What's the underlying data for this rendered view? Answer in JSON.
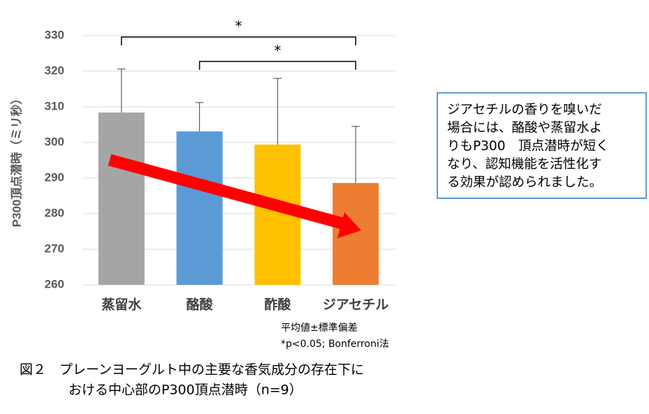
{
  "chart_data": {
    "type": "bar",
    "y_label": "P300頂点潜時（ミリ秒）",
    "categories": [
      "蒸留水",
      "酪酸",
      "酢酸",
      "ジアセチル"
    ],
    "values": [
      308.4,
      303.1,
      299.4,
      288.6
    ],
    "errors": [
      12.2,
      8.1,
      18.6,
      15.9
    ],
    "colors": [
      "#a5a5a5",
      "#5b9bd5",
      "#ffc000",
      "#ed7d31"
    ],
    "ylim": [
      260,
      330
    ],
    "yticks": [
      260,
      270,
      280,
      290,
      300,
      310,
      320,
      330
    ],
    "grid": true,
    "significance": [
      {
        "from": 0,
        "to": 3,
        "label": "*"
      },
      {
        "from": 1,
        "to": 3,
        "label": "*"
      }
    ],
    "notes": [
      "平均値±標準偏差",
      "*p<0.05; Bonferroni法"
    ]
  },
  "textbox": [
    "ジアセチルの香りを嗅いだ",
    "場合には、酪酸や蒸留水よ",
    "りもP300　頂点潜時が短く",
    "なり、認知機能を活性化す",
    "る効果が認められました。"
  ],
  "caption": [
    "図２　プレーンヨーグルト中の主要な香気成分の存在下に",
    "おける中心部のP300頂点潜時（n=9）"
  ]
}
